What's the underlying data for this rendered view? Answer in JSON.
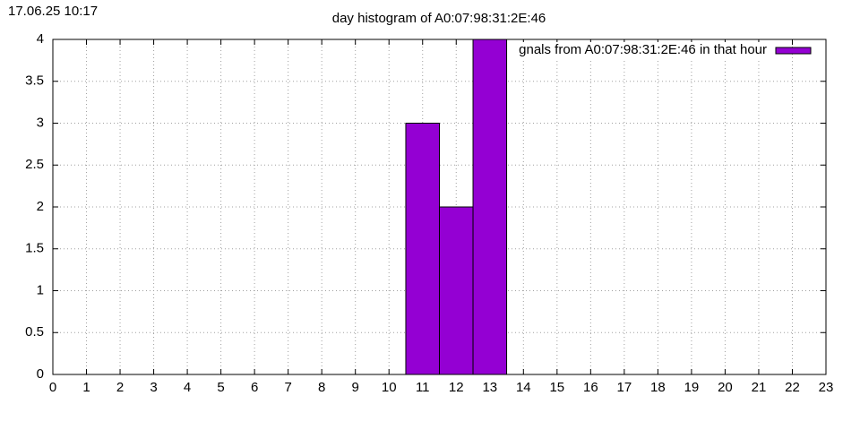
{
  "chart_data": {
    "type": "bar",
    "timestamp": "17.06.25 10:17",
    "title": "day histogram of A0:07:98:31:2E:46",
    "x": [
      11,
      12,
      13
    ],
    "series": [
      {
        "name": "gnals from A0:07:98:31:2E:46 in that hour",
        "color": "#9400d3",
        "values": [
          3,
          2,
          4
        ]
      }
    ],
    "xlim": [
      0,
      23
    ],
    "xticks": [
      0,
      1,
      2,
      3,
      4,
      5,
      6,
      7,
      8,
      9,
      10,
      11,
      12,
      13,
      14,
      15,
      16,
      17,
      18,
      19,
      20,
      21,
      22,
      23
    ],
    "ylim": [
      0,
      4
    ],
    "yticks": [
      0,
      0.5,
      1,
      1.5,
      2,
      2.5,
      3,
      3.5,
      4
    ],
    "grid": true,
    "legend": "top-right"
  }
}
